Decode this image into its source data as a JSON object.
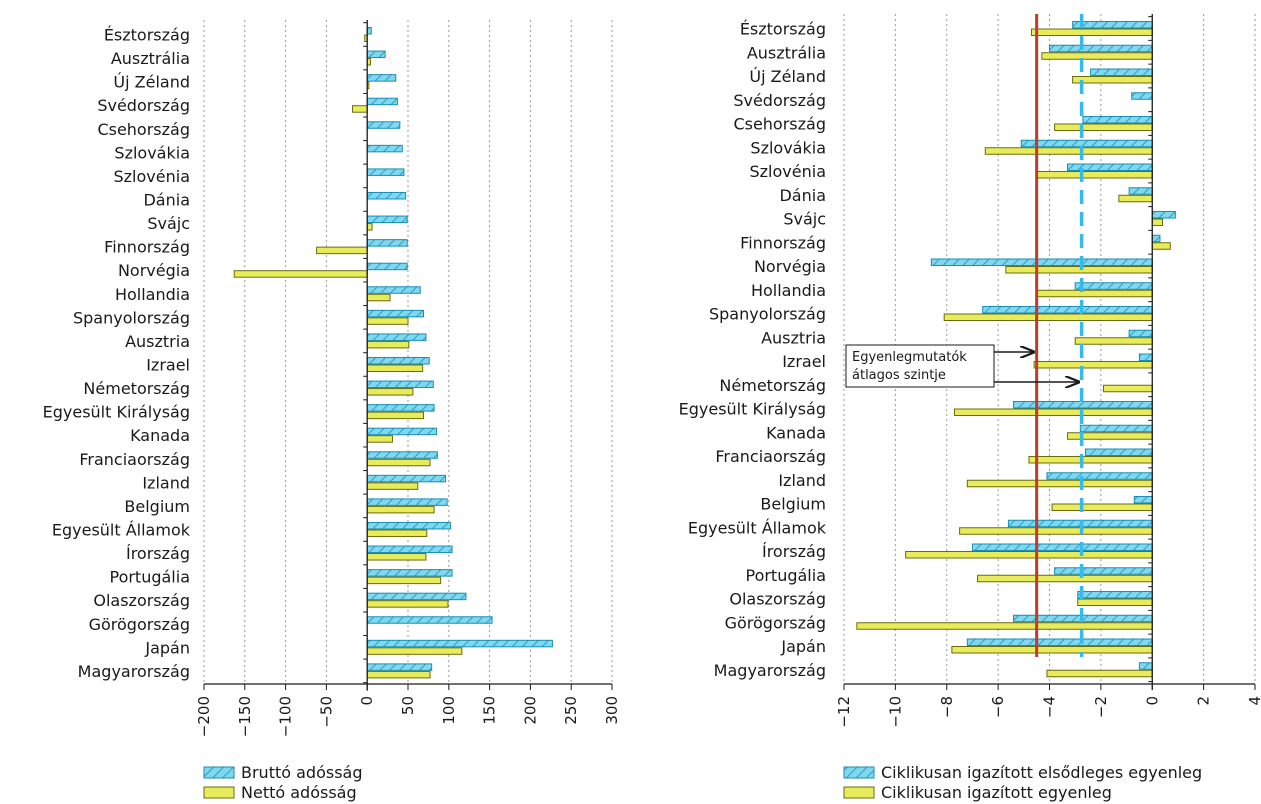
{
  "chart_data": [
    {
      "type": "bar",
      "orientation": "horizontal",
      "categories": [
        "Észtország",
        "Ausztrália",
        "Új Zéland",
        "Svédország",
        "Csehország",
        "Szlovákia",
        "Szlovénia",
        "Dánia",
        "Svájc",
        "Finnország",
        "Norvégia",
        "Hollandia",
        "Spanyolország",
        "Ausztria",
        "Izrael",
        "Németország",
        "Egyesült Királyság",
        "Kanada",
        "Franciaország",
        "Izland",
        "Belgium",
        "Egyesült Államok",
        "Írország",
        "Portugália",
        "Olaszország",
        "Görögország",
        "Japán",
        "Magyarország"
      ],
      "series": [
        {
          "name": "Bruttó adósság",
          "values": [
            5,
            22,
            35,
            37,
            40,
            43,
            45,
            47,
            49,
            49,
            49,
            65,
            69,
            72,
            76,
            81,
            82,
            85,
            86,
            96,
            98,
            102,
            104,
            104,
            121,
            153,
            227,
            79
          ]
        },
        {
          "name": "Nettó adósság",
          "values": [
            -3,
            4,
            2,
            -18,
            0,
            0,
            0,
            0,
            6,
            -62,
            -163,
            28,
            50,
            51,
            68,
            56,
            69,
            31,
            77,
            62,
            82,
            73,
            72,
            90,
            99,
            0,
            116,
            77
          ]
        }
      ],
      "xlim": [
        -200,
        300
      ],
      "xticks": [
        "-200",
        "-150",
        "-100",
        "-50",
        "0",
        "50",
        "100",
        "150",
        "200",
        "250",
        "300"
      ],
      "grid": true,
      "legend": "bottom-left"
    },
    {
      "type": "bar",
      "orientation": "horizontal",
      "categories": [
        "Észtország",
        "Ausztrália",
        "Új Zéland",
        "Svédország",
        "Csehország",
        "Szlovákia",
        "Szlovénia",
        "Dánia",
        "Svájc",
        "Finnország",
        "Norvégia",
        "Hollandia",
        "Spanyolország",
        "Ausztria",
        "Izrael",
        "Németország",
        "Egyesült Királyság",
        "Kanada",
        "Franciaország",
        "Izland",
        "Belgium",
        "Egyesült Államok",
        "Írország",
        "Portugália",
        "Olaszország",
        "Görögország",
        "Japán",
        "Magyarország"
      ],
      "series": [
        {
          "name": "Ciklikusan igazított elsődleges egyenleg",
          "values": [
            -3.1,
            -4.0,
            -2.4,
            -0.8,
            -2.7,
            -5.1,
            -3.3,
            -0.9,
            0.9,
            0.3,
            -8.6,
            -3.0,
            -6.6,
            -0.9,
            -0.5,
            0.0,
            -5.4,
            -2.8,
            -2.6,
            -4.1,
            -0.7,
            -5.6,
            -7.0,
            -3.8,
            -2.9,
            -5.4,
            -7.2,
            -0.5
          ]
        },
        {
          "name": "Ciklikusan igazított egyenleg",
          "values": [
            -4.7,
            -4.3,
            -3.1,
            0.0,
            -3.8,
            -6.5,
            -4.5,
            -1.3,
            0.4,
            0.7,
            -5.7,
            -4.5,
            -8.1,
            -3.0,
            -4.6,
            -1.9,
            -7.7,
            -3.3,
            -4.8,
            -7.2,
            -3.9,
            -7.5,
            -9.6,
            -6.8,
            -2.9,
            -11.5,
            -7.8,
            -4.1
          ]
        }
      ],
      "xlim": [
        -12,
        4
      ],
      "xticks": [
        "-12",
        "-10",
        "-8",
        "-6",
        "-4",
        "-2",
        "0",
        "2",
        "4"
      ],
      "reference_lines": [
        {
          "value": -4.5,
          "color": "#c0392b",
          "style": "solid"
        },
        {
          "value": -2.75,
          "color": "#33bbee",
          "style": "dashed"
        }
      ],
      "annotation": [
        "Egyenlegmutatók",
        "átlagos szintje"
      ],
      "grid": true,
      "legend": "bottom-right"
    }
  ],
  "colors": {
    "series1_fill": "#7fd8f0",
    "series1_stroke": "#1a8fb3",
    "series2_fill": "#e8ec5a",
    "series2_stroke": "#6b6b10"
  }
}
